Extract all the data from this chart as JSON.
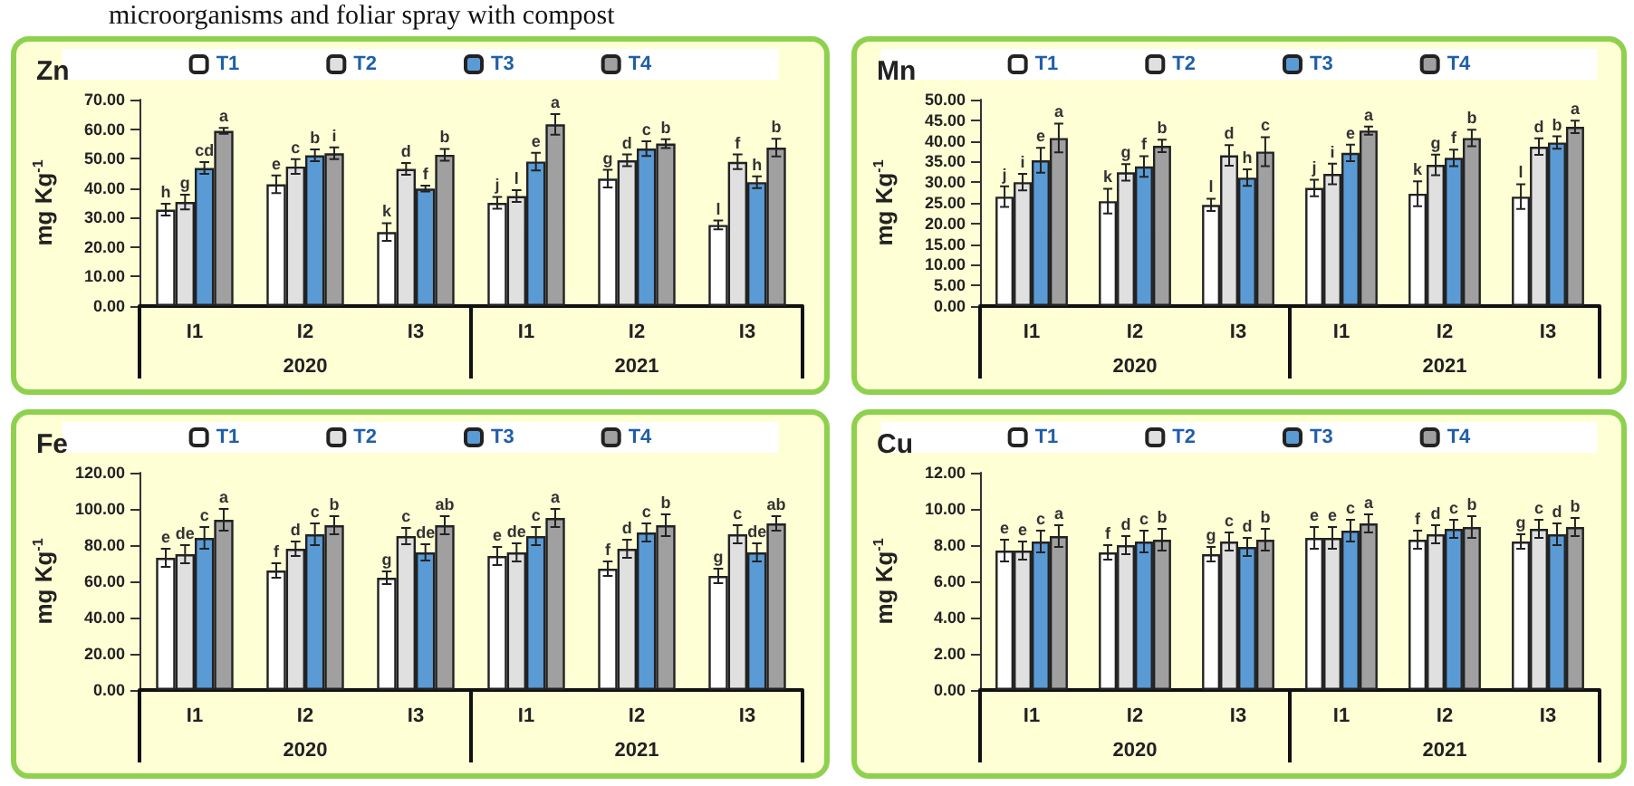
{
  "chart_data": [
    {
      "type": "bar",
      "title": "Zn",
      "subtitle": "microorganisms and foliar spray with compost",
      "ylabel": "mg Kg$^{-1}$",
      "categories": [
        "I1",
        "I2",
        "I3",
        "I1",
        "I2",
        "I3"
      ],
      "annotations": [
        "2020",
        "2021"
      ],
      "legend": "top",
      "grid": false,
      "ylim": [
        0,
        70
      ],
      "yticks": [
        {
          "value": 0,
          "label": "0.00"
        },
        {
          "value": 10,
          "label": "10.00"
        },
        {
          "value": 20,
          "label": "20.00"
        },
        {
          "value": 30,
          "label": "30.00"
        },
        {
          "value": 40,
          "label": "40.00"
        },
        {
          "value": 50,
          "label": "50.00"
        },
        {
          "value": 60,
          "label": "60.00"
        },
        {
          "value": 70,
          "label": "70.00"
        }
      ],
      "series": [
        {
          "name": "T1",
          "color": "#ffffff",
          "values": [
            32.7,
            41.3,
            25.1,
            35,
            43.2,
            27.5
          ],
          "errors": [
            2,
            3,
            3,
            2,
            3,
            1.5
          ],
          "value_labels": [
            "h",
            "e",
            "k",
            "j",
            "g",
            "l"
          ]
        },
        {
          "name": "T2",
          "color": "#e0e0e0",
          "values": [
            35.3,
            47.3,
            46.5,
            37.3,
            49.4,
            48.9
          ],
          "errors": [
            2.5,
            2.5,
            2,
            2,
            2,
            2.5
          ],
          "value_labels": [
            "g",
            "c",
            "d",
            "l",
            "d",
            "f"
          ]
        },
        {
          "name": "T3",
          "color": "#5b9bd5",
          "values": [
            46.8,
            51.1,
            39.8,
            49,
            53.4,
            42
          ],
          "errors": [
            2,
            2,
            1,
            3,
            2.5,
            2
          ],
          "value_labels": [
            "cd",
            "b",
            "f",
            "e",
            "c",
            "h"
          ]
        },
        {
          "name": "T4",
          "color": "#a0a0a0",
          "values": [
            59.4,
            51.8,
            51.3,
            61.6,
            55.1,
            53.7
          ],
          "errors": [
            1,
            2,
            2,
            3.5,
            1.5,
            3
          ],
          "value_labels": [
            "a",
            "i",
            "b",
            "a",
            "b",
            "b"
          ]
        }
      ]
    },
    {
      "type": "bar",
      "title": "Mn",
      "ylabel": "mg Kg$^{-1}$",
      "categories": [
        "I1",
        "I2",
        "I3",
        "I1",
        "I2",
        "I3"
      ],
      "annotations": [
        "2020",
        "2021"
      ],
      "legend": "top",
      "grid": false,
      "ylim": [
        0,
        50
      ],
      "yticks": [
        {
          "value": 0,
          "label": "0.00"
        },
        {
          "value": 5,
          "label": "5.00"
        },
        {
          "value": 10,
          "label": "10.00"
        },
        {
          "value": 15,
          "label": "15.00"
        },
        {
          "value": 20,
          "label": "20.00"
        },
        {
          "value": 25,
          "label": "25.00"
        },
        {
          "value": 30,
          "label": "30.00"
        },
        {
          "value": 35,
          "label": "35.00"
        },
        {
          "value": 40,
          "label": "40.00"
        },
        {
          "value": 45,
          "label": "45.00"
        },
        {
          "value": 50,
          "label": "50.00"
        }
      ],
      "series": [
        {
          "name": "T1",
          "color": "#ffffff",
          "values": [
            26.5,
            25.4,
            24.5,
            28.6,
            27.2,
            26.5
          ],
          "errors": [
            2.5,
            3,
            1.5,
            2,
            3,
            3
          ],
          "value_labels": [
            "j",
            "k",
            "l",
            "j",
            "k",
            "l"
          ]
        },
        {
          "name": "T2",
          "color": "#e0e0e0",
          "values": [
            30,
            32.4,
            36.5,
            32,
            34.2,
            38.6
          ],
          "errors": [
            2,
            2,
            2.5,
            2.5,
            2.5,
            2
          ],
          "value_labels": [
            "i",
            "g",
            "d",
            "i",
            "g",
            "d"
          ]
        },
        {
          "name": "T3",
          "color": "#5b9bd5",
          "values": [
            35.3,
            33.8,
            31.1,
            37.1,
            35.9,
            39.6
          ],
          "errors": [
            3,
            2.5,
            2,
            2,
            2,
            1.5
          ],
          "value_labels": [
            "e",
            "f",
            "h",
            "e",
            "f",
            "b"
          ]
        },
        {
          "name": "T4",
          "color": "#a0a0a0",
          "values": [
            40.7,
            38.8,
            37.4,
            42.5,
            40.7,
            43.4
          ],
          "errors": [
            3.5,
            1.5,
            3.5,
            1,
            2,
            1.5
          ],
          "value_labels": [
            "a",
            "b",
            "c",
            "a",
            "b",
            "a"
          ]
        }
      ]
    },
    {
      "type": "bar",
      "title": "Fe",
      "ylabel": "mg Kg$^{-1}$",
      "categories": [
        "I1",
        "I2",
        "I3",
        "I1",
        "I2",
        "I3"
      ],
      "annotations": [
        "2020",
        "2021"
      ],
      "legend": "top",
      "grid": false,
      "ylim": [
        0,
        120
      ],
      "yticks": [
        {
          "value": 0,
          "label": "0.00"
        },
        {
          "value": 20,
          "label": "20.00"
        },
        {
          "value": 40,
          "label": "40.00"
        },
        {
          "value": 60,
          "label": "60.00"
        },
        {
          "value": 80,
          "label": "80.00"
        },
        {
          "value": 100,
          "label": "100.00"
        },
        {
          "value": 120,
          "label": "120.00"
        }
      ],
      "series": [
        {
          "name": "T1",
          "color": "#ffffff",
          "values": [
            73,
            66,
            62,
            74,
            67,
            63
          ],
          "errors": [
            5,
            4,
            3.5,
            5,
            4,
            4
          ],
          "value_labels": [
            "e",
            "f",
            "g",
            "e",
            "f",
            "g"
          ]
        },
        {
          "name": "T2",
          "color": "#e0e0e0",
          "values": [
            75,
            78,
            85,
            76,
            78,
            86
          ],
          "errors": [
            5,
            4,
            4.5,
            5,
            5,
            5
          ],
          "value_labels": [
            "de",
            "d",
            "c",
            "de",
            "d",
            "c"
          ]
        },
        {
          "name": "T3",
          "color": "#5b9bd5",
          "values": [
            84,
            86,
            76,
            85,
            87,
            76
          ],
          "errors": [
            6,
            6,
            4.5,
            5,
            5,
            5
          ],
          "value_labels": [
            "c",
            "c",
            "de",
            "c",
            "c",
            "de"
          ]
        },
        {
          "name": "T4",
          "color": "#a0a0a0",
          "values": [
            94,
            91,
            91,
            95,
            91,
            92
          ],
          "errors": [
            6,
            5,
            5,
            5,
            6,
            4
          ],
          "value_labels": [
            "a",
            "b",
            "ab",
            "a",
            "b",
            "ab"
          ]
        }
      ]
    },
    {
      "type": "bar",
      "title": "Cu",
      "ylabel": "mg Kg$^{-1}$",
      "categories": [
        "I1",
        "I2",
        "I3",
        "I1",
        "I2",
        "I3"
      ],
      "annotations": [
        "2020",
        "2021"
      ],
      "legend": "top",
      "grid": false,
      "ylim": [
        0,
        12
      ],
      "yticks": [
        {
          "value": 0,
          "label": "0.00"
        },
        {
          "value": 2,
          "label": "2.00"
        },
        {
          "value": 4,
          "label": "4.00"
        },
        {
          "value": 6,
          "label": "6.00"
        },
        {
          "value": 8,
          "label": "8.00"
        },
        {
          "value": 10,
          "label": "10.00"
        },
        {
          "value": 12,
          "label": "12.00"
        }
      ],
      "series": [
        {
          "name": "T1",
          "color": "#ffffff",
          "values": [
            7.7,
            7.6,
            7.5,
            8.4,
            8.3,
            8.2
          ],
          "errors": [
            0.6,
            0.4,
            0.4,
            0.6,
            0.5,
            0.4
          ],
          "value_labels": [
            "e",
            "f",
            "g",
            "e",
            "f",
            "g"
          ]
        },
        {
          "name": "T2",
          "color": "#e0e0e0",
          "values": [
            7.7,
            8,
            8.2,
            8.4,
            8.6,
            8.9
          ],
          "errors": [
            0.5,
            0.5,
            0.5,
            0.6,
            0.5,
            0.5
          ],
          "value_labels": [
            "e",
            "d",
            "c",
            "e",
            "d",
            "c"
          ]
        },
        {
          "name": "T3",
          "color": "#5b9bd5",
          "values": [
            8.2,
            8.2,
            7.9,
            8.8,
            8.9,
            8.6
          ],
          "errors": [
            0.6,
            0.6,
            0.5,
            0.6,
            0.5,
            0.6
          ],
          "value_labels": [
            "c",
            "c",
            "d",
            "c",
            "c",
            "d"
          ]
        },
        {
          "name": "T4",
          "color": "#a0a0a0",
          "values": [
            8.5,
            8.3,
            8.3,
            9.2,
            9,
            9
          ],
          "errors": [
            0.6,
            0.6,
            0.6,
            0.5,
            0.6,
            0.5
          ],
          "value_labels": [
            "a",
            "b",
            "b",
            "a",
            "b",
            "b"
          ]
        }
      ]
    }
  ]
}
